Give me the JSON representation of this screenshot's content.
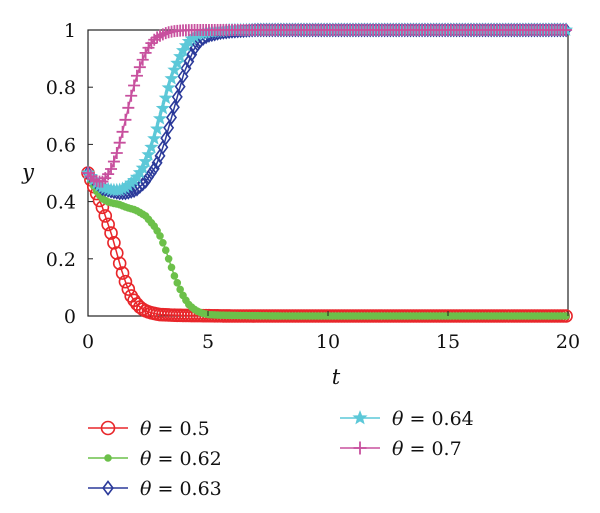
{
  "chart_data": {
    "type": "line",
    "xlabel": "t",
    "ylabel": "y",
    "xlim": [
      0,
      20
    ],
    "ylim": [
      0,
      1
    ],
    "xticks": [
      "0",
      "5",
      "10",
      "15",
      "20"
    ],
    "yticks": [
      "0",
      "0.2",
      "0.4",
      "0.6",
      "0.8",
      "1"
    ],
    "grid": false,
    "legend_position": "bottom",
    "legend_symbol": "θ",
    "series": [
      {
        "name": "θ = 0.5",
        "theta": "0.5",
        "color": "#e8262a",
        "marker": "circle",
        "x": [
          0,
          0.2,
          0.4,
          0.6,
          0.8,
          1.0,
          1.2,
          1.4,
          1.6,
          1.8,
          2.0,
          2.2,
          2.4,
          2.6,
          2.8,
          3.0,
          3.5,
          4,
          5,
          6,
          8,
          10,
          12,
          14,
          16,
          18,
          20
        ],
        "y": [
          0.5,
          0.46,
          0.42,
          0.38,
          0.33,
          0.28,
          0.22,
          0.16,
          0.11,
          0.07,
          0.045,
          0.028,
          0.018,
          0.012,
          0.008,
          0.005,
          0.003,
          0.002,
          0.001,
          0.0,
          0.0,
          0.0,
          0.0,
          0.0,
          0.0,
          0.0,
          0.0
        ]
      },
      {
        "name": "θ = 0.62",
        "theta": "0.62",
        "color": "#6cc04a",
        "marker": "dot",
        "x": [
          0,
          0.2,
          0.4,
          0.6,
          0.8,
          1.0,
          1.3,
          1.6,
          2.0,
          2.4,
          2.8,
          3.0,
          3.2,
          3.4,
          3.6,
          3.8,
          4.0,
          4.2,
          4.4,
          4.6,
          4.8,
          5.0,
          5.5,
          6,
          7,
          8,
          10,
          12,
          14,
          16,
          18,
          20
        ],
        "y": [
          0.5,
          0.46,
          0.43,
          0.41,
          0.4,
          0.395,
          0.39,
          0.38,
          0.37,
          0.35,
          0.31,
          0.28,
          0.24,
          0.19,
          0.14,
          0.1,
          0.065,
          0.04,
          0.025,
          0.015,
          0.009,
          0.005,
          0.003,
          0.002,
          0.001,
          0.0,
          0.0,
          0.0,
          0.0,
          0.0,
          0.0,
          0.0
        ]
      },
      {
        "name": "θ = 0.63",
        "theta": "0.63",
        "color": "#2b3a9a",
        "marker": "diamond",
        "x": [
          0,
          0.2,
          0.4,
          0.6,
          0.8,
          1.0,
          1.3,
          1.6,
          2.0,
          2.4,
          2.8,
          3.0,
          3.2,
          3.4,
          3.6,
          3.8,
          4.0,
          4.2,
          4.4,
          4.6,
          4.8,
          5.0,
          5.5,
          6,
          7,
          8,
          10,
          12,
          14,
          16,
          18,
          20
        ],
        "y": [
          0.5,
          0.48,
          0.46,
          0.445,
          0.44,
          0.435,
          0.43,
          0.43,
          0.44,
          0.47,
          0.52,
          0.56,
          0.61,
          0.67,
          0.73,
          0.79,
          0.85,
          0.89,
          0.93,
          0.955,
          0.97,
          0.98,
          0.99,
          0.995,
          1.0,
          1.0,
          1.0,
          1.0,
          1.0,
          1.0,
          1.0,
          1.0
        ]
      },
      {
        "name": "θ = 0.64",
        "theta": "0.64",
        "color": "#5cc8d8",
        "marker": "star",
        "x": [
          0,
          0.2,
          0.4,
          0.6,
          0.8,
          1.0,
          1.3,
          1.6,
          2.0,
          2.3,
          2.6,
          2.8,
          3.0,
          3.2,
          3.4,
          3.6,
          3.8,
          4.0,
          4.2,
          4.4,
          4.6,
          5.0,
          5.5,
          6,
          7,
          8,
          10,
          12,
          14,
          16,
          18,
          20
        ],
        "y": [
          0.5,
          0.48,
          0.46,
          0.45,
          0.445,
          0.44,
          0.44,
          0.45,
          0.48,
          0.52,
          0.58,
          0.63,
          0.69,
          0.75,
          0.81,
          0.86,
          0.9,
          0.935,
          0.96,
          0.975,
          0.985,
          0.993,
          0.997,
          1.0,
          1.0,
          1.0,
          1.0,
          1.0,
          1.0,
          1.0,
          1.0,
          1.0
        ]
      },
      {
        "name": "θ = 0.7",
        "theta": "0.7",
        "color": "#c8509e",
        "marker": "plus",
        "x": [
          0,
          0.2,
          0.4,
          0.6,
          0.8,
          1.0,
          1.2,
          1.4,
          1.6,
          1.8,
          2.0,
          2.2,
          2.4,
          2.6,
          2.8,
          3.0,
          3.2,
          3.4,
          3.6,
          4.0,
          4.5,
          5,
          6,
          7,
          8,
          10,
          12,
          14,
          16,
          18,
          20
        ],
        "y": [
          0.5,
          0.48,
          0.47,
          0.47,
          0.49,
          0.52,
          0.57,
          0.63,
          0.7,
          0.77,
          0.83,
          0.88,
          0.92,
          0.95,
          0.97,
          0.98,
          0.988,
          0.993,
          0.996,
          0.999,
          1.0,
          1.0,
          1.0,
          1.0,
          1.0,
          1.0,
          1.0,
          1.0,
          1.0,
          1.0,
          1.0
        ]
      }
    ]
  }
}
